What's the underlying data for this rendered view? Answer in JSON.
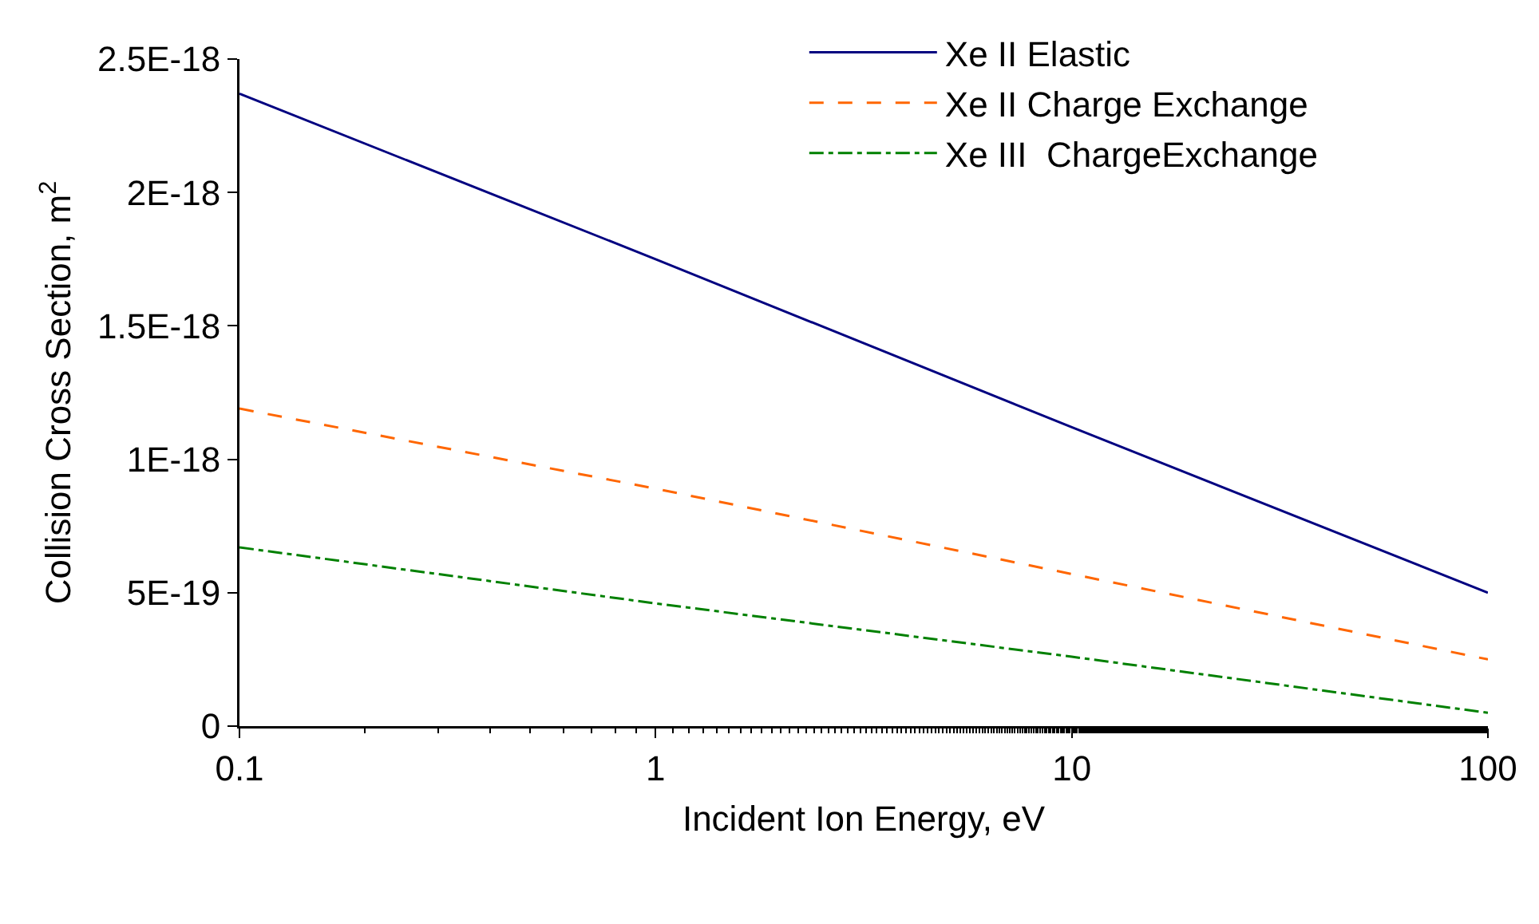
{
  "chart_data": {
    "type": "line",
    "xlabel": "Incident Ion Energy, eV",
    "ylabel": "Collision Cross Section, m$^{2}$",
    "log": "x",
    "x": [
      0.1,
      1,
      10,
      100
    ],
    "series": [
      {
        "name": "Xe II Elastic",
        "color": "#000080",
        "line_style": "solid",
        "values": [
          2.37e-18,
          1.75e-18,
          1.12e-18,
          5e-19
        ]
      },
      {
        "name": "Xe II Charge Exchange",
        "color": "#ff6600",
        "line_style": "dashed",
        "values": [
          1.19e-18,
          8.9e-19,
          5.7e-19,
          2.5e-19
        ]
      },
      {
        "name": "Xe III  ChargeExchange",
        "color": "#008000",
        "line_style": "dotted",
        "values": [
          6.7e-19,
          4.6e-19,
          2.6e-19,
          5e-20
        ]
      }
    ],
    "xlim": [
      0.1,
      100
    ],
    "xticks": [
      0.1,
      1,
      10,
      100
    ],
    "ylim": [
      0,
      2.5e-18
    ],
    "yticks": [
      0,
      {
        "value": 5e-19,
        "label": "5E-19"
      },
      {
        "value": 1e-18,
        "label": "1E-18"
      },
      {
        "value": 1.5e-18,
        "label": "1.5E-18"
      },
      {
        "value": 2e-18,
        "label": "2E-18"
      },
      {
        "value": 2.5e-18,
        "label": "2.5E-18"
      }
    ],
    "grid": false,
    "legend": "top right",
    "marker": "none"
  }
}
